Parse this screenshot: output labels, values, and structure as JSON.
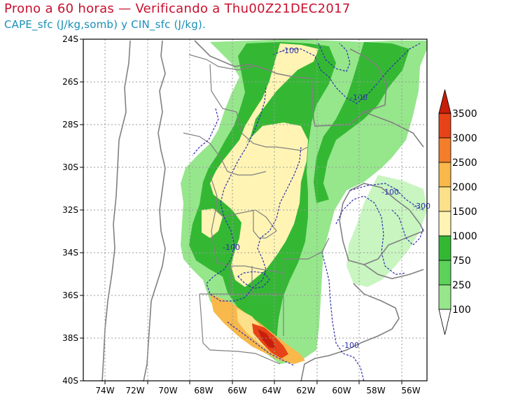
{
  "title": "Prono a 60 horas — Verificando a Thu00Z21DEC2017",
  "subtitle": "CAPE_sfc (J/kg,somb) y CIN_sfc (J/kg).",
  "lat_ticks": [
    "24S",
    "26S",
    "28S",
    "30S",
    "32S",
    "34S",
    "36S",
    "38S",
    "40S"
  ],
  "lon_ticks": [
    "74W",
    "72W",
    "70W",
    "68W",
    "66W",
    "64W",
    "62W",
    "60W",
    "58W",
    "56W"
  ],
  "colorbar": {
    "labels": [
      "100",
      "250",
      "750",
      "1000",
      "1500",
      "2000",
      "2500",
      "3000",
      "3500"
    ],
    "colors": [
      "#c8f5c0",
      "#96e68c",
      "#5cd25a",
      "#34b834",
      "#fff4b4",
      "#fde08a",
      "#f8b84a",
      "#f47e2a",
      "#e64418",
      "#c81e0a"
    ]
  },
  "cin_labels": [
    "-100",
    "-100",
    "-100",
    "-100",
    "-300",
    "-100"
  ],
  "colors": {
    "cape_light": "#96e68c",
    "cape_green": "#34b834",
    "cape_yellow": "#fff4b4",
    "cape_orange": "#f8b84a",
    "cape_red": "#e64418",
    "cin_contour": "#2e2eb0",
    "border": "#808080"
  }
}
